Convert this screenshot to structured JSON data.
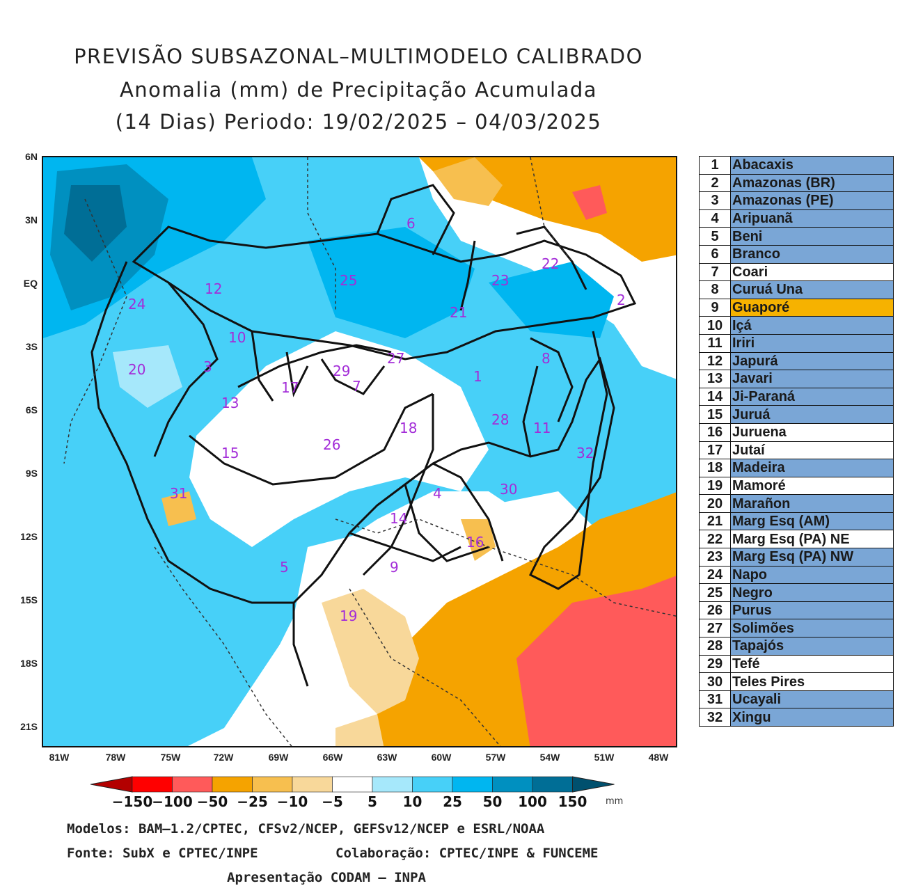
{
  "title": {
    "line1": "PREVISÃO SUBSAZONAL–MULTIMODELO CALIBRADO",
    "line2": "Anomalia (mm) de Precipitação Acumulada",
    "line3": "(14 Dias) Periodo: 19/02/2025 – 04/03/2025"
  },
  "axes": {
    "y_ticks": [
      "6N",
      "3N",
      "EQ",
      "3S",
      "6S",
      "9S",
      "12S",
      "15S",
      "18S",
      "21S"
    ],
    "x_ticks": [
      "81W",
      "78W",
      "75W",
      "72W",
      "69W",
      "66W",
      "63W",
      "60W",
      "57W",
      "54W",
      "51W",
      "48W"
    ]
  },
  "basin_labels": [
    "1",
    "2",
    "3",
    "4",
    "5",
    "6",
    "7",
    "8",
    "9",
    "10",
    "11",
    "12",
    "13",
    "14",
    "15",
    "16",
    "17",
    "18",
    "19",
    "20",
    "21",
    "22",
    "23",
    "24",
    "25",
    "26",
    "27",
    "28",
    "29",
    "30",
    "31",
    "32"
  ],
  "legend": [
    {
      "num": "1",
      "name": "Abacaxis",
      "style": "blue"
    },
    {
      "num": "2",
      "name": "Amazonas (BR)",
      "style": "blue"
    },
    {
      "num": "3",
      "name": "Amazonas (PE)",
      "style": "blue"
    },
    {
      "num": "4",
      "name": "Aripuanã",
      "style": "blue"
    },
    {
      "num": "5",
      "name": "Beni",
      "style": "blue"
    },
    {
      "num": "6",
      "name": "Branco",
      "style": "blue"
    },
    {
      "num": "7",
      "name": "Coari",
      "style": "white"
    },
    {
      "num": "8",
      "name": "Curuá Una",
      "style": "blue"
    },
    {
      "num": "9",
      "name": "Guaporé",
      "style": "orange"
    },
    {
      "num": "10",
      "name": "Içá",
      "style": "blue"
    },
    {
      "num": "11",
      "name": "Iriri",
      "style": "blue"
    },
    {
      "num": "12",
      "name": "Japurá",
      "style": "blue"
    },
    {
      "num": "13",
      "name": "Javari",
      "style": "blue"
    },
    {
      "num": "14",
      "name": "Ji-Paraná",
      "style": "blue"
    },
    {
      "num": "15",
      "name": "Juruá",
      "style": "blue"
    },
    {
      "num": "16",
      "name": "Juruena",
      "style": "white"
    },
    {
      "num": "17",
      "name": "Jutaí",
      "style": "white"
    },
    {
      "num": "18",
      "name": "Madeira",
      "style": "blue"
    },
    {
      "num": "19",
      "name": "Mamoré",
      "style": "white"
    },
    {
      "num": "20",
      "name": "Marañon",
      "style": "blue"
    },
    {
      "num": "21",
      "name": "Marg Esq (AM)",
      "style": "blue"
    },
    {
      "num": "22",
      "name": "Marg Esq (PA) NE",
      "style": "white"
    },
    {
      "num": "23",
      "name": "Marg Esq (PA) NW",
      "style": "blue"
    },
    {
      "num": "24",
      "name": "Napo",
      "style": "blue"
    },
    {
      "num": "25",
      "name": "Negro",
      "style": "blue"
    },
    {
      "num": "26",
      "name": "Purus",
      "style": "blue"
    },
    {
      "num": "27",
      "name": "Solimões",
      "style": "blue"
    },
    {
      "num": "28",
      "name": "Tapajós",
      "style": "blue"
    },
    {
      "num": "29",
      "name": "Tefé",
      "style": "white"
    },
    {
      "num": "30",
      "name": "Teles Pires",
      "style": "white"
    },
    {
      "num": "31",
      "name": "Ucayali",
      "style": "blue"
    },
    {
      "num": "32",
      "name": "Xingu",
      "style": "blue"
    }
  ],
  "colorbar": {
    "labels": [
      "−150",
      "−100",
      "−50",
      "−25",
      "−10",
      "−5",
      "5",
      "10",
      "25",
      "50",
      "100",
      "150"
    ],
    "colors": [
      "#b30000",
      "#ff0000",
      "#ff5a5a",
      "#f5a300",
      "#f7bf4f",
      "#f8d89a",
      "#ffffff",
      "#a6e8fb",
      "#47d0f8",
      "#00b6f0",
      "#0090c0",
      "#006e96",
      "#00506e"
    ],
    "unit": "mm"
  },
  "footer": {
    "models": "Modelos: BAM–1.2/CPTEC, CFSv2/NCEP, GEFSv12/NCEP e ESRL/NOAA",
    "source": "Fonte: SubX e CPTEC/INPE",
    "collab": "Colaboração: CPTEC/INPE & FUNCEME",
    "presentation": "Apresentação CODAM – INPA"
  }
}
